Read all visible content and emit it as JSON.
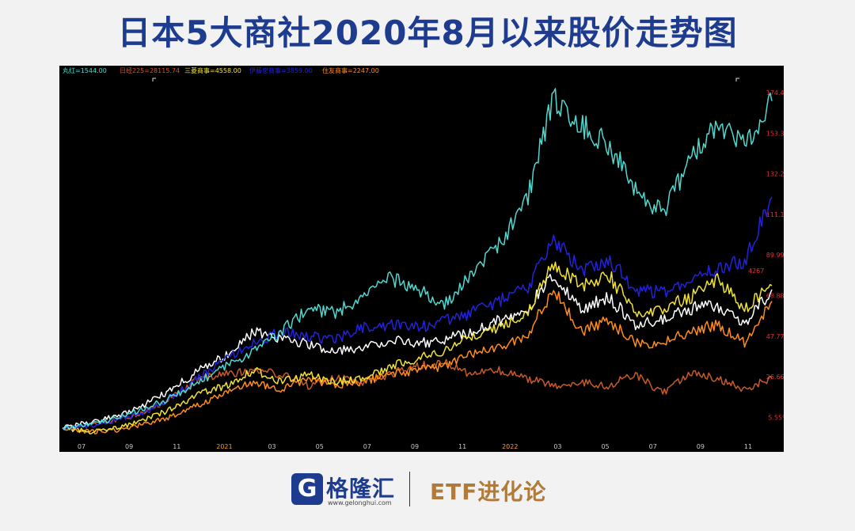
{
  "title": "日本5大商社2020年8月以来股价走势图",
  "footer": {
    "logo_mark": "G",
    "logo_name": "格隆汇",
    "logo_url": "www.gelonghui.com",
    "brand2": "ETF进化论"
  },
  "chart_data": {
    "type": "line",
    "legend": [
      {
        "text": "丸红=1544.00",
        "color": "#4fd8d0"
      },
      {
        "text": "日经225=28115.74",
        "color": "#c85a28"
      },
      {
        "text": "三菱商事=4558.00",
        "color": "#f2e233"
      },
      {
        "text": "伊藤忠商事=3859.00",
        "color": "#2222dd"
      },
      {
        "text": "住友商事=2247.00",
        "color": "#ff8c1a"
      }
    ],
    "x_ticks": [
      "07",
      "09",
      "11",
      "2021",
      "03",
      "05",
      "07",
      "09",
      "11",
      "2022",
      "03",
      "05",
      "07",
      "09",
      "11"
    ],
    "y_ticks": [
      "174.4%",
      "153.3%",
      "132.2%",
      "111.1%",
      "89.99%",
      "68.88%",
      "47.77%",
      "26.66%",
      "5.55%"
    ],
    "ylim": [
      -5.0,
      181.0
    ],
    "annotation": "4267",
    "series": [
      {
        "name": "丸红",
        "color": "#4fd8d0",
        "values": [
          0,
          2,
          5,
          10,
          16,
          24,
          32,
          40,
          50,
          62,
          60,
          68,
          78,
          72,
          64,
          80,
          95,
          118,
          172,
          158,
          148,
          124,
          112,
          138,
          160,
          148,
          170
        ]
      },
      {
        "name": "日经225",
        "color": "#c85a28",
        "values": [
          0,
          2,
          4,
          8,
          16,
          26,
          28,
          30,
          28,
          22,
          26,
          24,
          28,
          32,
          34,
          28,
          30,
          26,
          22,
          24,
          22,
          28,
          18,
          28,
          26,
          20,
          26
        ]
      },
      {
        "name": "三菱商事",
        "color": "#f2e233",
        "values": [
          0,
          -2,
          0,
          4,
          10,
          18,
          22,
          30,
          24,
          28,
          24,
          26,
          32,
          36,
          40,
          48,
          52,
          60,
          86,
          74,
          80,
          60,
          62,
          68,
          78,
          62,
          74
        ]
      },
      {
        "name": "伊藤忠商事",
        "color": "#2222dd",
        "values": [
          0,
          1,
          4,
          8,
          16,
          26,
          36,
          44,
          50,
          48,
          46,
          52,
          54,
          52,
          56,
          60,
          66,
          72,
          98,
          82,
          88,
          72,
          70,
          74,
          84,
          86,
          120
        ]
      },
      {
        "name": "住友商事",
        "color": "#ff8c1a",
        "values": [
          0,
          -2,
          -1,
          2,
          6,
          12,
          18,
          24,
          20,
          26,
          22,
          24,
          28,
          30,
          32,
          38,
          42,
          48,
          72,
          50,
          56,
          44,
          44,
          50,
          54,
          44,
          66
        ]
      },
      {
        "name": "",
        "color": "#ffffff",
        "values": [
          0,
          3,
          6,
          12,
          20,
          30,
          38,
          50,
          46,
          44,
          40,
          42,
          46,
          44,
          46,
          50,
          56,
          62,
          80,
          62,
          68,
          54,
          56,
          62,
          64,
          54,
          72
        ]
      }
    ]
  }
}
